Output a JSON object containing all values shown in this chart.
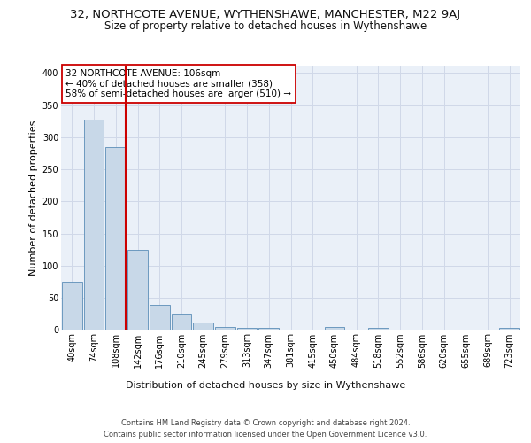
{
  "title_line1": "32, NORTHCOTE AVENUE, WYTHENSHAWE, MANCHESTER, M22 9AJ",
  "title_line2": "Size of property relative to detached houses in Wythenshawe",
  "xlabel": "Distribution of detached houses by size in Wythenshawe",
  "ylabel": "Number of detached properties",
  "footer_line1": "Contains HM Land Registry data © Crown copyright and database right 2024.",
  "footer_line2": "Contains public sector information licensed under the Open Government Licence v3.0.",
  "categories": [
    "40sqm",
    "74sqm",
    "108sqm",
    "142sqm",
    "176sqm",
    "210sqm",
    "245sqm",
    "279sqm",
    "313sqm",
    "347sqm",
    "381sqm",
    "415sqm",
    "450sqm",
    "484sqm",
    "518sqm",
    "552sqm",
    "586sqm",
    "620sqm",
    "655sqm",
    "689sqm",
    "723sqm"
  ],
  "values": [
    75,
    327,
    284,
    125,
    39,
    25,
    12,
    5,
    4,
    3,
    0,
    0,
    5,
    0,
    4,
    0,
    0,
    0,
    0,
    0,
    3
  ],
  "bar_color": "#c8d8e8",
  "bar_edge_color": "#5b8db8",
  "highlight_bar_index": 2,
  "highlight_line_color": "#cc0000",
  "annotation_text": "32 NORTHCOTE AVENUE: 106sqm\n← 40% of detached houses are smaller (358)\n58% of semi-detached houses are larger (510) →",
  "annotation_box_color": "#ffffff",
  "annotation_box_edge_color": "#cc0000",
  "ylim": [
    0,
    410
  ],
  "yticks": [
    0,
    50,
    100,
    150,
    200,
    250,
    300,
    350,
    400
  ],
  "grid_color": "#d0d8e8",
  "background_color": "#eaf0f8",
  "title_fontsize": 9.5,
  "subtitle_fontsize": 8.5,
  "axis_label_fontsize": 8,
  "tick_fontsize": 7,
  "footer_fontsize": 6,
  "annotation_fontsize": 7.5
}
